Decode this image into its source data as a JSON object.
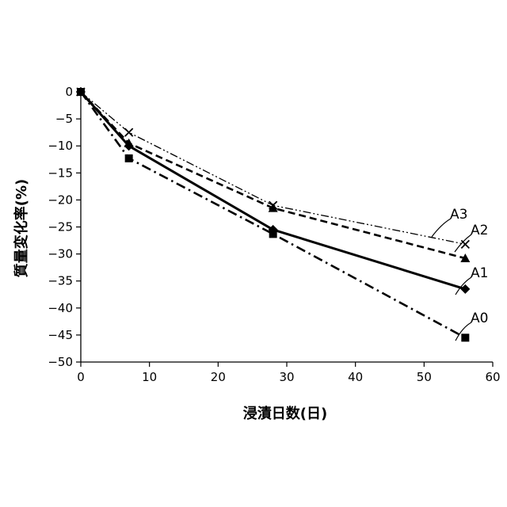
{
  "chart_data": {
    "type": "line",
    "title": "",
    "xlabel": "浸漬日数(日)",
    "ylabel": "質量変化率(%)",
    "xlim": [
      0,
      60
    ],
    "ylim": [
      -50,
      0
    ],
    "x_ticks": [
      0,
      10,
      20,
      30,
      40,
      50,
      60
    ],
    "y_ticks": [
      0,
      -5,
      -10,
      -15,
      -20,
      -25,
      -30,
      -35,
      -40,
      -45,
      -50
    ],
    "x_tick_labels": [
      "0",
      "10",
      "20",
      "30",
      "40",
      "50",
      "60"
    ],
    "y_tick_labels": [
      "0",
      "−5",
      "−10",
      "−15",
      "−20",
      "−25",
      "−30",
      "−35",
      "−40",
      "−45",
      "−50"
    ],
    "grid": false,
    "legend": "inline labels at right end of lines",
    "series": [
      {
        "name": "A0",
        "marker": "square",
        "line_style": "dash-dot",
        "x": [
          0,
          7,
          28,
          56
        ],
        "y": [
          0,
          -12.3,
          -26.3,
          -45.5
        ]
      },
      {
        "name": "A1",
        "marker": "diamond",
        "line_style": "solid",
        "x": [
          0,
          7,
          28,
          56
        ],
        "y": [
          0,
          -10,
          -25.5,
          -36.5
        ]
      },
      {
        "name": "A2",
        "marker": "triangle",
        "line_style": "dashed",
        "x": [
          0,
          7,
          28,
          56
        ],
        "y": [
          0,
          -9.5,
          -21.5,
          -30.8
        ]
      },
      {
        "name": "A3",
        "marker": "cross",
        "line_style": "dash-dot-dot",
        "x": [
          0,
          7,
          28,
          56
        ],
        "y": [
          0,
          -7.5,
          -21,
          -28.2
        ]
      }
    ]
  }
}
